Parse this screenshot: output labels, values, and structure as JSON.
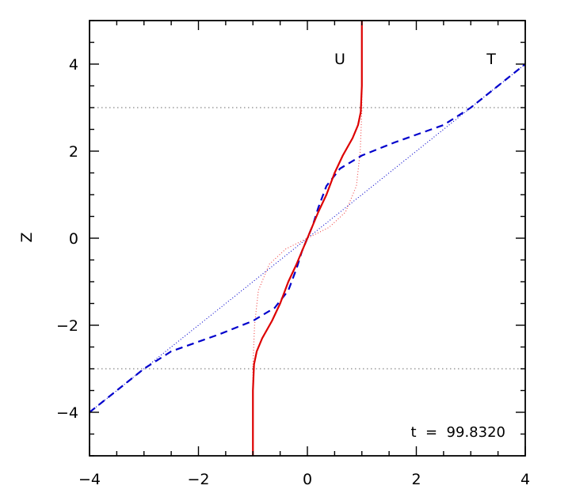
{
  "chart_data": {
    "type": "line",
    "title": "",
    "xlabel": "",
    "ylabel": "Z",
    "xlim": [
      -4,
      4
    ],
    "ylim": [
      -5,
      5
    ],
    "x_ticks": [
      -4,
      -2,
      0,
      2,
      4
    ],
    "y_ticks": [
      -4,
      -2,
      0,
      2,
      4
    ],
    "x_tick_labels": [
      "−4",
      "−2",
      "0",
      "2",
      "4"
    ],
    "y_tick_labels": [
      "−4",
      "−2",
      "0",
      "2",
      "4"
    ],
    "grid": false,
    "annotations": {
      "u_label": "U",
      "t_label": "T",
      "time_label": "t  =  99.8320"
    },
    "reference_lines": [
      {
        "y": 3,
        "color": "#888888",
        "style": "dotted"
      },
      {
        "y": -3,
        "color": "#888888",
        "style": "dotted"
      }
    ],
    "series": [
      {
        "key": "T_initial",
        "color": "#0000cc",
        "style": "dotted",
        "points": [
          [
            -4,
            -4
          ],
          [
            4,
            4
          ]
        ]
      },
      {
        "key": "U_initial",
        "color": "#ee4444",
        "style": "dotted",
        "points": [
          [
            -1,
            -5
          ],
          [
            -1,
            -2.95
          ],
          [
            -0.97,
            -2
          ],
          [
            -0.9,
            -1.2
          ],
          [
            -0.7,
            -0.6
          ],
          [
            -0.4,
            -0.25
          ],
          [
            0,
            0
          ],
          [
            0.4,
            0.25
          ],
          [
            0.7,
            0.6
          ],
          [
            0.9,
            1.2
          ],
          [
            0.97,
            2
          ],
          [
            1,
            2.95
          ],
          [
            1,
            5
          ]
        ]
      },
      {
        "key": "T",
        "color": "#0000cc",
        "style": "dashed",
        "points": [
          [
            -4,
            -4
          ],
          [
            -3.5,
            -3.5
          ],
          [
            -3,
            -3
          ],
          [
            -2.5,
            -2.6
          ],
          [
            -1.6,
            -2.2
          ],
          [
            -1.0,
            -1.9
          ],
          [
            -0.6,
            -1.6
          ],
          [
            -0.35,
            -1.2
          ],
          [
            -0.2,
            -0.7
          ],
          [
            -0.1,
            -0.3
          ],
          [
            0,
            0
          ],
          [
            0.1,
            0.3
          ],
          [
            0.2,
            0.7
          ],
          [
            0.35,
            1.2
          ],
          [
            0.6,
            1.6
          ],
          [
            1.0,
            1.9
          ],
          [
            1.6,
            2.2
          ],
          [
            2.5,
            2.6
          ],
          [
            3,
            3
          ],
          [
            3.5,
            3.5
          ],
          [
            4,
            4
          ]
        ]
      },
      {
        "key": "U",
        "color": "#dd0000",
        "style": "solid",
        "points": [
          [
            -1,
            -5
          ],
          [
            -1,
            -3.5
          ],
          [
            -0.98,
            -2.9
          ],
          [
            -0.93,
            -2.6
          ],
          [
            -0.83,
            -2.3
          ],
          [
            -0.65,
            -1.9
          ],
          [
            -0.5,
            -1.5
          ],
          [
            -0.35,
            -1.0
          ],
          [
            -0.2,
            -0.6
          ],
          [
            -0.1,
            -0.3
          ],
          [
            0,
            0
          ],
          [
            0.1,
            0.3
          ],
          [
            0.2,
            0.6
          ],
          [
            0.35,
            1.0
          ],
          [
            0.5,
            1.5
          ],
          [
            0.65,
            1.9
          ],
          [
            0.83,
            2.3
          ],
          [
            0.93,
            2.6
          ],
          [
            0.98,
            2.9
          ],
          [
            1,
            3.5
          ],
          [
            1,
            5
          ]
        ]
      }
    ]
  }
}
